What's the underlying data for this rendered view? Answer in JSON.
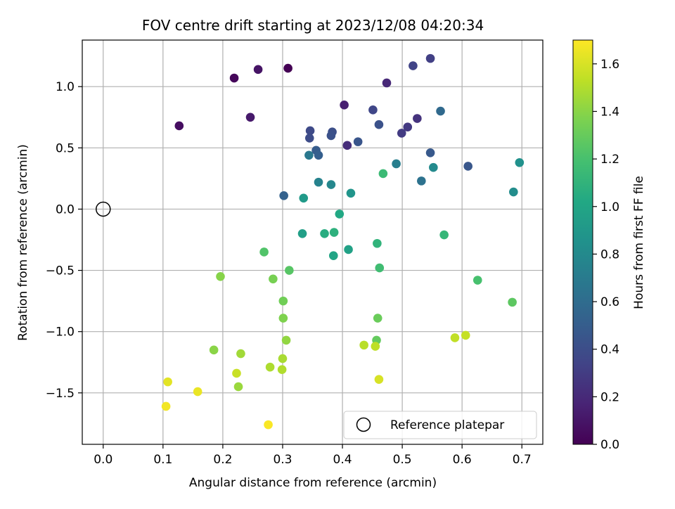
{
  "chart_data": {
    "type": "scatter",
    "title": "FOV centre drift starting at 2023/12/08 04:20:34",
    "xlabel": "Angular distance from reference (arcmin)",
    "ylabel": "Rotation from reference (arcmin)",
    "xlim": [
      -0.035,
      0.735
    ],
    "ylim": [
      -1.92,
      1.38
    ],
    "xticks": [
      0.0,
      0.1,
      0.2,
      0.3,
      0.4,
      0.5,
      0.6,
      0.7
    ],
    "xtick_labels": [
      "0.0",
      "0.1",
      "0.2",
      "0.3",
      "0.4",
      "0.5",
      "0.6",
      "0.7"
    ],
    "yticks": [
      -1.5,
      -1.0,
      -0.5,
      0.0,
      0.5,
      1.0
    ],
    "ytick_labels": [
      "−1.5",
      "−1.0",
      "−0.5",
      "0.0",
      "0.5",
      "1.0"
    ],
    "grid": true,
    "colormap": "viridis",
    "colorbar": {
      "label": "Hours from first FF file",
      "range": [
        0.0,
        1.7
      ],
      "ticks": [
        0.0,
        0.2,
        0.4,
        0.6,
        0.8,
        1.0,
        1.2,
        1.4,
        1.6
      ],
      "tick_labels": [
        "0.0",
        "0.2",
        "0.4",
        "0.6",
        "0.8",
        "1.0",
        "1.2",
        "1.4",
        "1.6"
      ]
    },
    "reference_point": {
      "x": 0.0,
      "y": 0.0,
      "marker": "hollow-circle",
      "color": "#000000"
    },
    "legend": {
      "position": "lower-right",
      "entries": [
        "Reference platepar"
      ]
    },
    "series": [
      {
        "points": [
          {
            "x": 0.309,
            "y": 1.15,
            "t": 0.0
          },
          {
            "x": 0.219,
            "y": 1.07,
            "t": 0.03
          },
          {
            "x": 0.127,
            "y": 0.68,
            "t": 0.06
          },
          {
            "x": 0.259,
            "y": 1.14,
            "t": 0.09
          },
          {
            "x": 0.246,
            "y": 0.75,
            "t": 0.12
          },
          {
            "x": 0.403,
            "y": 0.85,
            "t": 0.15
          },
          {
            "x": 0.474,
            "y": 1.03,
            "t": 0.19
          },
          {
            "x": 0.408,
            "y": 0.52,
            "t": 0.22
          },
          {
            "x": 0.525,
            "y": 0.74,
            "t": 0.25
          },
          {
            "x": 0.509,
            "y": 0.67,
            "t": 0.28
          },
          {
            "x": 0.499,
            "y": 0.62,
            "t": 0.3
          },
          {
            "x": 0.547,
            "y": 1.23,
            "t": 0.32
          },
          {
            "x": 0.518,
            "y": 1.17,
            "t": 0.34
          },
          {
            "x": 0.451,
            "y": 0.81,
            "t": 0.36
          },
          {
            "x": 0.346,
            "y": 0.64,
            "t": 0.38
          },
          {
            "x": 0.345,
            "y": 0.58,
            "t": 0.39
          },
          {
            "x": 0.383,
            "y": 0.63,
            "t": 0.41
          },
          {
            "x": 0.381,
            "y": 0.6,
            "t": 0.42
          },
          {
            "x": 0.461,
            "y": 0.69,
            "t": 0.43
          },
          {
            "x": 0.426,
            "y": 0.55,
            "t": 0.45
          },
          {
            "x": 0.61,
            "y": 0.35,
            "t": 0.46
          },
          {
            "x": 0.547,
            "y": 0.46,
            "t": 0.47
          },
          {
            "x": 0.356,
            "y": 0.48,
            "t": 0.49
          },
          {
            "x": 0.36,
            "y": 0.44,
            "t": 0.51
          },
          {
            "x": 0.302,
            "y": 0.11,
            "t": 0.53
          },
          {
            "x": 0.564,
            "y": 0.8,
            "t": 0.58
          },
          {
            "x": 0.532,
            "y": 0.23,
            "t": 0.64
          },
          {
            "x": 0.344,
            "y": 0.44,
            "t": 0.68
          },
          {
            "x": 0.49,
            "y": 0.37,
            "t": 0.72
          },
          {
            "x": 0.36,
            "y": 0.22,
            "t": 0.75
          },
          {
            "x": 0.381,
            "y": 0.2,
            "t": 0.78
          },
          {
            "x": 0.552,
            "y": 0.34,
            "t": 0.8
          },
          {
            "x": 0.686,
            "y": 0.14,
            "t": 0.82
          },
          {
            "x": 0.696,
            "y": 0.38,
            "t": 0.85
          },
          {
            "x": 0.414,
            "y": 0.13,
            "t": 0.88
          },
          {
            "x": 0.335,
            "y": 0.09,
            "t": 0.92
          },
          {
            "x": 0.333,
            "y": -0.2,
            "t": 0.95
          },
          {
            "x": 0.41,
            "y": -0.33,
            "t": 0.97
          },
          {
            "x": 0.385,
            "y": -0.38,
            "t": 0.99
          },
          {
            "x": 0.395,
            "y": -0.04,
            "t": 1.02
          },
          {
            "x": 0.37,
            "y": -0.2,
            "t": 1.05
          },
          {
            "x": 0.386,
            "y": -0.19,
            "t": 1.08
          },
          {
            "x": 0.458,
            "y": -0.28,
            "t": 1.1
          },
          {
            "x": 0.57,
            "y": -0.21,
            "t": 1.12
          },
          {
            "x": 0.468,
            "y": 0.29,
            "t": 1.15
          },
          {
            "x": 0.462,
            "y": -0.48,
            "t": 1.17
          },
          {
            "x": 0.626,
            "y": -0.58,
            "t": 1.2
          },
          {
            "x": 0.269,
            "y": -0.35,
            "t": 1.23
          },
          {
            "x": 0.311,
            "y": -0.5,
            "t": 1.25
          },
          {
            "x": 0.684,
            "y": -0.76,
            "t": 1.27
          },
          {
            "x": 0.457,
            "y": -1.07,
            "t": 1.29
          },
          {
            "x": 0.459,
            "y": -0.89,
            "t": 1.31
          },
          {
            "x": 0.301,
            "y": -0.75,
            "t": 1.33
          },
          {
            "x": 0.284,
            "y": -0.57,
            "t": 1.35
          },
          {
            "x": 0.301,
            "y": -0.89,
            "t": 1.37
          },
          {
            "x": 0.196,
            "y": -0.55,
            "t": 1.39
          },
          {
            "x": 0.185,
            "y": -1.15,
            "t": 1.4
          },
          {
            "x": 0.306,
            "y": -1.07,
            "t": 1.42
          },
          {
            "x": 0.226,
            "y": -1.45,
            "t": 1.44
          },
          {
            "x": 0.23,
            "y": -1.18,
            "t": 1.46
          },
          {
            "x": 0.3,
            "y": -1.22,
            "t": 1.48
          },
          {
            "x": 0.279,
            "y": -1.29,
            "t": 1.49
          },
          {
            "x": 0.299,
            "y": -1.31,
            "t": 1.5
          },
          {
            "x": 0.436,
            "y": -1.11,
            "t": 1.52
          },
          {
            "x": 0.455,
            "y": -1.12,
            "t": 1.53
          },
          {
            "x": 0.588,
            "y": -1.05,
            "t": 1.54
          },
          {
            "x": 0.606,
            "y": -1.03,
            "t": 1.55
          },
          {
            "x": 0.223,
            "y": -1.34,
            "t": 1.56
          },
          {
            "x": 0.461,
            "y": -1.39,
            "t": 1.6
          },
          {
            "x": 0.108,
            "y": -1.41,
            "t": 1.63
          },
          {
            "x": 0.158,
            "y": -1.49,
            "t": 1.65
          },
          {
            "x": 0.105,
            "y": -1.61,
            "t": 1.67
          },
          {
            "x": 0.276,
            "y": -1.76,
            "t": 1.69
          }
        ]
      }
    ]
  }
}
